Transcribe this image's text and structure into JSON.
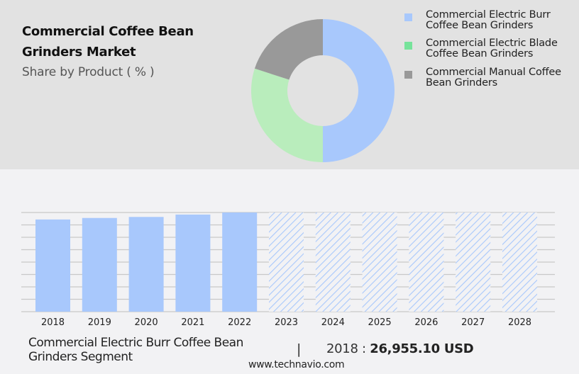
{
  "header": {
    "title": "Commercial Coffee Bean Grinders Market",
    "subtitle": "Share by Product ( % )"
  },
  "legend": {
    "items": [
      {
        "label": "Commercial Electric Burr Coffee Bean Grinders",
        "color": "#a8c8fc"
      },
      {
        "label": "Commercial Electric Blade Coffee Bean Grinders",
        "color": "#77e39b"
      },
      {
        "label": "Commercial Manual Coffee Bean Grinders",
        "color": "#999999"
      }
    ]
  },
  "footer": {
    "segment": "Commercial Electric Burr Coffee Bean Grinders Segment",
    "separator": "|",
    "year_label": "2018 :",
    "value": "26,955.10 USD",
    "url": "www.technavio.com"
  },
  "colors": {
    "burr": "#a8c8fc",
    "blade": "#b9edbc",
    "manual": "#999999",
    "top_bg": "#e2e2e2",
    "bottom_bg": "#f2f2f4",
    "grid": "#c8c8c8"
  },
  "chart_data": [
    {
      "type": "pie",
      "title": "Commercial Coffee Bean Grinders Market",
      "subtitle": "Share by Product ( % )",
      "donut": true,
      "categories": [
        "Commercial Electric Burr Coffee Bean Grinders",
        "Commercial Electric Blade Coffee Bean Grinders",
        "Commercial Manual Coffee Bean Grinders"
      ],
      "values": [
        50,
        30,
        20
      ],
      "colors": [
        "#a8c8fc",
        "#b9edbc",
        "#999999"
      ],
      "legend_position": "right"
    },
    {
      "type": "bar",
      "title": "Commercial Electric Burr Coffee Bean Grinders Segment",
      "categories": [
        "2018",
        "2019",
        "2020",
        "2021",
        "2022",
        "2023",
        "2024",
        "2025",
        "2026",
        "2027",
        "2028"
      ],
      "values": [
        26955.1,
        27400,
        27700,
        28400,
        29000,
        null,
        null,
        null,
        null,
        null,
        null
      ],
      "forecast_years": [
        "2023",
        "2024",
        "2025",
        "2026",
        "2027",
        "2028"
      ],
      "xlabel": "",
      "ylabel": "",
      "grid": true,
      "annotation": "2018 : 26,955.10 USD"
    }
  ]
}
